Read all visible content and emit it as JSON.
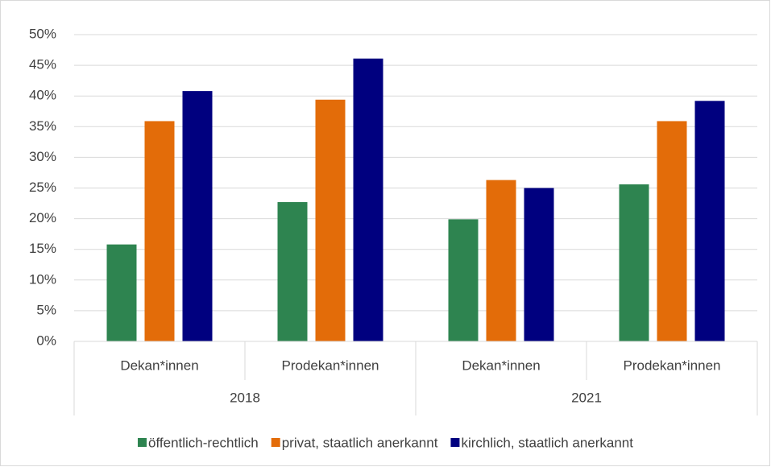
{
  "chart_data": {
    "type": "bar",
    "categories": [
      "Dekan*innen",
      "Prodekan*innen",
      "Dekan*innen",
      "Prodekan*innen"
    ],
    "category_groups": [
      "2018",
      "2021"
    ],
    "series": [
      {
        "name": "öffentlich-rechtlich",
        "color": "#2e8450",
        "values": [
          15.8,
          22.7,
          19.9,
          25.6
        ]
      },
      {
        "name": "privat, staatlich anerkannt",
        "color": "#e36c09",
        "values": [
          35.9,
          39.4,
          26.3,
          35.9
        ]
      },
      {
        "name": "kirchlich, staatlich anerkannt",
        "color": "#00007f",
        "values": [
          40.8,
          46.1,
          25.0,
          39.2
        ]
      }
    ],
    "ylim": [
      0,
      50
    ],
    "yticks": [
      {
        "value": 0,
        "label": "0%"
      },
      {
        "value": 5,
        "label": "5%"
      },
      {
        "value": 10,
        "label": "10%"
      },
      {
        "value": 15,
        "label": "15%"
      },
      {
        "value": 20,
        "label": "20%"
      },
      {
        "value": 25,
        "label": "25%"
      },
      {
        "value": 30,
        "label": "30%"
      },
      {
        "value": 35,
        "label": "35%"
      },
      {
        "value": 40,
        "label": "40%"
      },
      {
        "value": 45,
        "label": "45%"
      },
      {
        "value": 50,
        "label": "50%"
      }
    ],
    "grid": true,
    "legend": "bottom"
  }
}
